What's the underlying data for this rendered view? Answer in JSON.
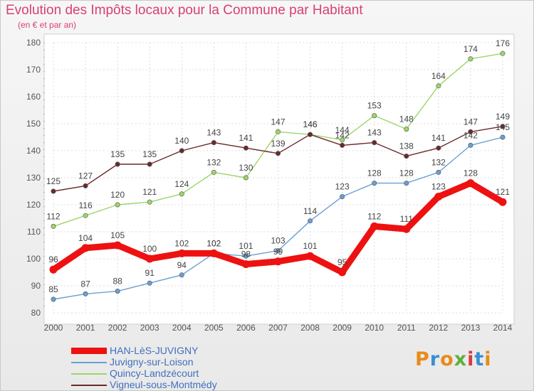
{
  "title": "Evolution des Impôts locaux pour la Commune par Habitant",
  "subtitle": "(en € et par an)",
  "logo": {
    "text": "Proxiti",
    "letters": [
      "P",
      "r",
      "o",
      "x",
      "i",
      "t",
      "i"
    ],
    "colors": [
      "#e88a1a",
      "#3a8fd0",
      "#e88a1a",
      "#5fb03a",
      "#d83a3a",
      "#3a8fd0",
      "#e88a1a"
    ]
  },
  "chart_data": {
    "type": "line",
    "title": "Evolution des Impôts locaux pour la Commune par Habitant",
    "subtitle": "(en € et par an)",
    "x": [
      "2000",
      "2001",
      "2002",
      "2003",
      "2004",
      "2005",
      "2006",
      "2007",
      "2008",
      "2009",
      "2010",
      "2011",
      "2012",
      "2013",
      "2014"
    ],
    "ylim": [
      80,
      180
    ],
    "yticks": [
      80,
      90,
      100,
      110,
      120,
      130,
      140,
      150,
      160,
      170,
      180
    ],
    "grid": true,
    "legend_position": "bottom-left",
    "series": [
      {
        "name": "HAN-LèS-JUVIGNY",
        "color": "#ee1111",
        "emphasis": true,
        "values": [
          96,
          104,
          105,
          100,
          102,
          102,
          98,
          99,
          101,
          95,
          112,
          111,
          123,
          128,
          121
        ]
      },
      {
        "name": "Juvigny-sur-Loison",
        "color": "#6a9fd4",
        "emphasis": false,
        "values": [
          85,
          87,
          88,
          91,
          94,
          102,
          101,
          103,
          114,
          123,
          128,
          128,
          132,
          142,
          145
        ]
      },
      {
        "name": "Quincy-Landzécourt",
        "color": "#9bd66b",
        "emphasis": false,
        "values": [
          112,
          116,
          120,
          121,
          124,
          132,
          130,
          147,
          146,
          144,
          153,
          148,
          164,
          174,
          176
        ]
      },
      {
        "name": "Vigneul-sous-Montmédy",
        "color": "#6b2a2a",
        "emphasis": false,
        "values": [
          125,
          127,
          135,
          135,
          140,
          143,
          141,
          139,
          146,
          142,
          143,
          138,
          141,
          147,
          149
        ]
      }
    ]
  }
}
